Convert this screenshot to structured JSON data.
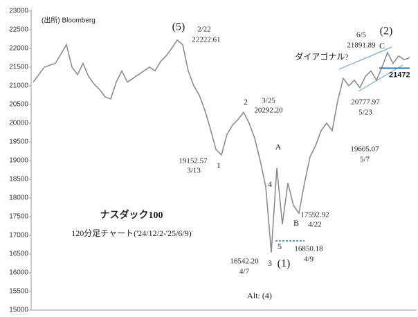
{
  "chart_data": {
    "type": "line",
    "title": "ナスダック100",
    "subtitle": "120分足チャート('24/12/2-'25/6/9)",
    "source": "(出所) Bloomberg",
    "color": "#8c8c8c",
    "values": [
      21100,
      21300,
      21500,
      21550,
      21600,
      21850,
      22100,
      21500,
      21300,
      21600,
      21250,
      21050,
      20900,
      20700,
      20650,
      21100,
      21400,
      21100,
      21200,
      21300,
      21400,
      21500,
      21400,
      21650,
      21800,
      22000,
      22222.61,
      22100,
      21400,
      21000,
      20750,
      20350,
      19850,
      19300,
      19152.57,
      19700,
      19950,
      20100,
      20292.2,
      20000,
      19600,
      19000,
      18300,
      16542.2,
      18800,
      17300,
      18400,
      17800,
      17592.92,
      18400,
      19100,
      19400,
      19800,
      20000,
      19800,
      20600,
      21200,
      21000,
      21150,
      20950,
      21250,
      21400,
      21150,
      21500,
      21891.89,
      21600,
      21800,
      21700,
      21750
    ],
    "ylim": [
      15000,
      23000
    ],
    "yticks": [
      15000,
      15500,
      16000,
      16500,
      17000,
      17500,
      18000,
      18500,
      19000,
      19500,
      20000,
      20500,
      21000,
      21500,
      22000,
      22500,
      23000
    ],
    "reference_line": 21472,
    "reference_color": "#2e75b6",
    "annotations": [
      "(5)",
      "2/22",
      "22222.61",
      "2",
      "3/25",
      "20292.20",
      "19152.57",
      "3/13",
      "1",
      "A",
      "4",
      "B",
      "17592.92",
      "4/22",
      "3",
      "5",
      "16542.20",
      "4/7",
      "(1)",
      "16850.18",
      "4/9",
      "19605.07",
      "5/7",
      "6/5",
      "21891.89",
      "(2)",
      "C",
      "ダイアゴナル?",
      "20777.97",
      "5/23",
      "Alt: (4)"
    ]
  }
}
